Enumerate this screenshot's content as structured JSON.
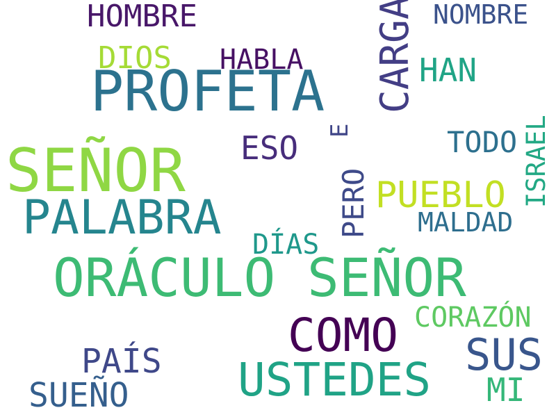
{
  "words": [
    {
      "text": "ORÁCULO SEÑOR",
      "color": "#3dbb74",
      "orientation": "horizontal"
    },
    {
      "text": "SEÑOR",
      "color": "#8fd744",
      "orientation": "horizontal"
    },
    {
      "text": "PROFETA",
      "color": "#2c728e",
      "orientation": "horizontal"
    },
    {
      "text": "PALABRA",
      "color": "#25858e",
      "orientation": "horizontal"
    },
    {
      "text": "USTEDES",
      "color": "#20a386",
      "orientation": "horizontal"
    },
    {
      "text": "CARGA",
      "color": "#433e85",
      "orientation": "vertical"
    },
    {
      "text": "COMO",
      "color": "#440154",
      "orientation": "horizontal"
    },
    {
      "text": "SUS",
      "color": "#39568c",
      "orientation": "horizontal"
    },
    {
      "text": "PUEBLO",
      "color": "#c2df23",
      "orientation": "horizontal"
    },
    {
      "text": "HOMBRE",
      "color": "#481769",
      "orientation": "horizontal"
    },
    {
      "text": "DIOS",
      "color": "#a5db36",
      "orientation": "horizontal"
    },
    {
      "text": "HABLA",
      "color": "#471164",
      "orientation": "horizontal"
    },
    {
      "text": "NOMBRE",
      "color": "#3b528b",
      "orientation": "horizontal"
    },
    {
      "text": "HAN",
      "color": "#20a486",
      "orientation": "horizontal"
    },
    {
      "text": "ESO",
      "color": "#472d7b",
      "orientation": "horizontal"
    },
    {
      "text": "E",
      "color": "#404688",
      "orientation": "vertical"
    },
    {
      "text": "TODO",
      "color": "#2d708e",
      "orientation": "horizontal"
    },
    {
      "text": "ISRAEL",
      "color": "#22a884",
      "orientation": "vertical"
    },
    {
      "text": "PERO",
      "color": "#3e4a89",
      "orientation": "vertical"
    },
    {
      "text": "MALDAD",
      "color": "#2e6e8e",
      "orientation": "horizontal"
    },
    {
      "text": "DÍAS",
      "color": "#1f988b",
      "orientation": "horizontal"
    },
    {
      "text": "CORAZÓN",
      "color": "#5ec962",
      "orientation": "horizontal"
    },
    {
      "text": "PAÍS",
      "color": "#3f4889",
      "orientation": "horizontal"
    },
    {
      "text": "SUEÑO",
      "color": "#355f8d",
      "orientation": "horizontal"
    },
    {
      "text": "MI",
      "color": "#35b779",
      "orientation": "horizontal"
    }
  ]
}
